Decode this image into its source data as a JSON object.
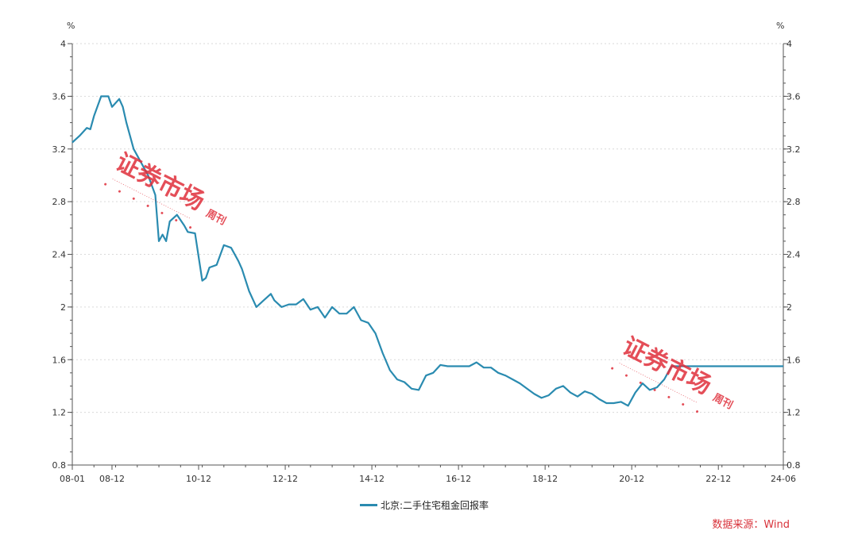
{
  "source_text": "数据来源：Wind",
  "watermark": {
    "main": "证券市场",
    "suffix": "周刊"
  },
  "colors": {
    "line": "#2a8bb0",
    "axis": "#555555",
    "grid": "#d9d9d9",
    "source": "#d8323a",
    "watermark": "#e0303c"
  },
  "chart_data": {
    "type": "line",
    "title": "",
    "xlabel": "",
    "ylabel_left": "%",
    "ylabel_right": "%",
    "ylim": [
      0.8,
      4
    ],
    "yticks": [
      0.8,
      1.2,
      1.6,
      2,
      2.4,
      2.8,
      3.2,
      3.6,
      4
    ],
    "ytick_labels": [
      "0.8",
      "1.2",
      "1.6",
      "2",
      "2.4",
      "2.8",
      "3.2",
      "3.6",
      "4"
    ],
    "xlim": [
      "2008-01",
      "2024-06"
    ],
    "xticks": [
      "2008-01",
      "2008-12",
      "2010-12",
      "2012-12",
      "2014-12",
      "2016-12",
      "2018-12",
      "2020-12",
      "2022-12",
      "2024-06"
    ],
    "xtick_labels": [
      "08-01",
      "08-12",
      "10-12",
      "12-12",
      "14-12",
      "16-12",
      "18-12",
      "20-12",
      "22-12",
      "24-06"
    ],
    "grid": "horizontal-dotted",
    "legend_position": "bottom-center",
    "series": [
      {
        "name": "北京:二手住宅租金回报率",
        "x": [
          "2008-01",
          "2008-03",
          "2008-05",
          "2008-06",
          "2008-07",
          "2008-09",
          "2008-11",
          "2008-12",
          "2009-02",
          "2009-03",
          "2009-04",
          "2009-06",
          "2009-08",
          "2009-10",
          "2009-12",
          "2010-01",
          "2010-02",
          "2010-03",
          "2010-04",
          "2010-06",
          "2010-08",
          "2010-09",
          "2010-11",
          "2011-01",
          "2011-02",
          "2011-03",
          "2011-05",
          "2011-07",
          "2011-09",
          "2011-11",
          "2011-12",
          "2012-02",
          "2012-04",
          "2012-06",
          "2012-08",
          "2012-09",
          "2012-11",
          "2013-01",
          "2013-03",
          "2013-05",
          "2013-07",
          "2013-09",
          "2013-11",
          "2014-01",
          "2014-03",
          "2014-05",
          "2014-07",
          "2014-09",
          "2014-11",
          "2015-01",
          "2015-03",
          "2015-05",
          "2015-07",
          "2015-09",
          "2015-11",
          "2016-01",
          "2016-03",
          "2016-05",
          "2016-07",
          "2016-09",
          "2016-11",
          "2017-01",
          "2017-03",
          "2017-05",
          "2017-07",
          "2017-09",
          "2017-11",
          "2018-01",
          "2018-03",
          "2018-05",
          "2018-07",
          "2018-09",
          "2018-11",
          "2019-01",
          "2019-03",
          "2019-05",
          "2019-07",
          "2019-09",
          "2019-11",
          "2020-01",
          "2020-03",
          "2020-05",
          "2020-07",
          "2020-09",
          "2020-11",
          "2021-01",
          "2021-03",
          "2021-05",
          "2021-07",
          "2021-09",
          "2021-11",
          "2022-01",
          "2022-03",
          "2022-05",
          "2022-07",
          "2022-09",
          "2022-11",
          "2023-01",
          "2023-03",
          "2023-05",
          "2023-07",
          "2023-09",
          "2023-11",
          "2024-01",
          "2024-03",
          "2024-06"
        ],
        "values": [
          3.25,
          3.3,
          3.36,
          3.35,
          3.45,
          3.6,
          3.6,
          3.52,
          3.58,
          3.52,
          3.4,
          3.2,
          3.1,
          3.0,
          2.85,
          2.5,
          2.55,
          2.5,
          2.65,
          2.7,
          2.62,
          2.57,
          2.56,
          2.2,
          2.22,
          2.3,
          2.32,
          2.47,
          2.45,
          2.35,
          2.29,
          2.12,
          2.0,
          2.05,
          2.1,
          2.05,
          2.0,
          2.02,
          2.02,
          2.06,
          1.98,
          2.0,
          1.92,
          2.0,
          1.95,
          1.95,
          2.0,
          1.9,
          1.88,
          1.8,
          1.65,
          1.52,
          1.45,
          1.43,
          1.38,
          1.37,
          1.48,
          1.5,
          1.56,
          1.55,
          1.55,
          1.55,
          1.55,
          1.58,
          1.54,
          1.54,
          1.5,
          1.48,
          1.45,
          1.42,
          1.38,
          1.34,
          1.31,
          1.33,
          1.38,
          1.4,
          1.35,
          1.32,
          1.36,
          1.34,
          1.3,
          1.27,
          1.27,
          1.28,
          1.25,
          1.35,
          1.42,
          1.37,
          1.39,
          1.45,
          1.55,
          1.55,
          1.55,
          1.55,
          1.55,
          1.55,
          1.55,
          1.55,
          1.55,
          1.55,
          1.55,
          1.55,
          1.55,
          1.55,
          1.55,
          1.55
        ]
      }
    ]
  }
}
